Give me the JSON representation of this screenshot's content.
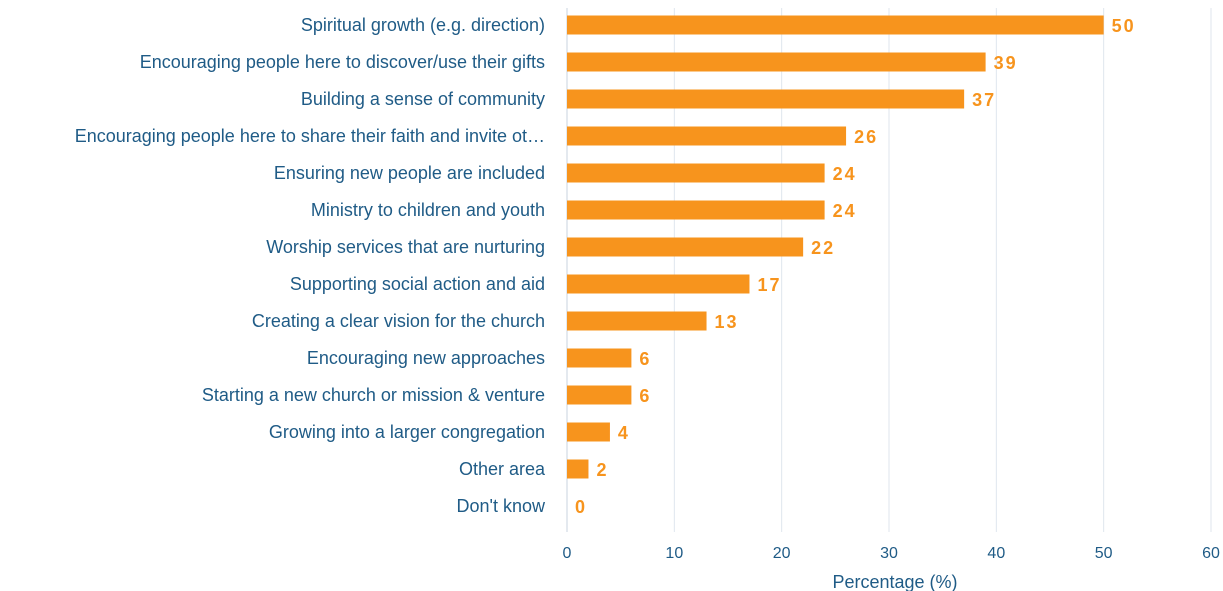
{
  "chart_data": {
    "type": "bar",
    "orientation": "horizontal",
    "categories": [
      "Spiritual growth (e.g. direction)",
      "Encouraging people here to discover/use their gifts",
      "Building a sense of community",
      "Encouraging people here to share their faith and invite ot…",
      "Ensuring new people are included",
      "Ministry to children and youth",
      "Worship services that are nurturing",
      "Supporting social action and aid",
      "Creating a clear vision for the church",
      "Encouraging new approaches",
      "Starting a new church or mission & venture",
      "Growing into a larger congregation",
      "Other area",
      "Don't know"
    ],
    "values": [
      50,
      39,
      37,
      26,
      24,
      24,
      22,
      17,
      13,
      6,
      6,
      4,
      2,
      0
    ],
    "xlabel": "Percentage (%)",
    "ylabel": "",
    "xlim": [
      0,
      60
    ],
    "xticks": [
      "0",
      "10",
      "20",
      "30",
      "40",
      "50",
      "60"
    ],
    "grid": "vertical",
    "data_labels": true,
    "colors": {
      "bar": "#f7941d",
      "value_label": "#f7941d",
      "text": "#1f5b86",
      "grid": "#dfe6ee"
    }
  }
}
